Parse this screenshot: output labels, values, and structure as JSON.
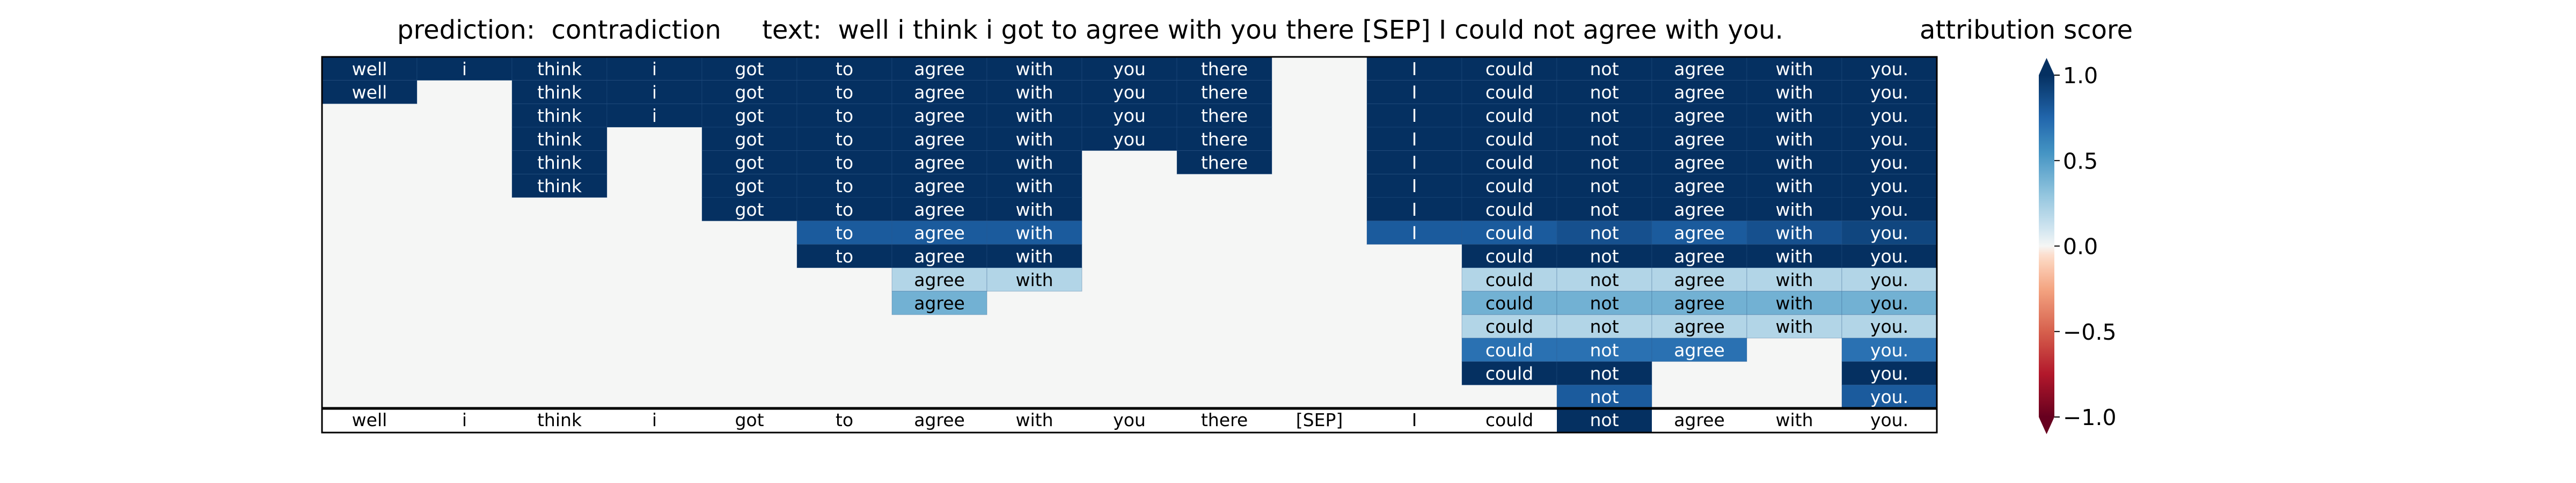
{
  "header": {
    "title": "prediction:  contradiction     text:  well i think i got to agree with you there [SEP] I could not agree with you.",
    "colorbar_title": "attribution score"
  },
  "chart_data": {
    "type": "heatmap",
    "tokens": [
      "well",
      "i",
      "think",
      "i",
      "got",
      "to",
      "agree",
      "with",
      "you",
      "there",
      "[SEP]",
      "I",
      "could",
      "not",
      "agree",
      "with",
      "you."
    ],
    "rows": [
      [
        1,
        1,
        1,
        1,
        1,
        1,
        1,
        1,
        1,
        1,
        0,
        1,
        1,
        1,
        1,
        1,
        1
      ],
      [
        1,
        0,
        1,
        1,
        1,
        1,
        1,
        1,
        1,
        1,
        0,
        1,
        1,
        1,
        1,
        1,
        1
      ],
      [
        0,
        0,
        1,
        1,
        1,
        1,
        1,
        1,
        1,
        1,
        0,
        1,
        1,
        1,
        1,
        1,
        1
      ],
      [
        0,
        0,
        1,
        0,
        1,
        1,
        1,
        1,
        1,
        1,
        0,
        1,
        1,
        1,
        1,
        1,
        1
      ],
      [
        0,
        0,
        1,
        0,
        1,
        1,
        1,
        1,
        0,
        1,
        0,
        1,
        1,
        1,
        1,
        1,
        1
      ],
      [
        0,
        0,
        1,
        0,
        1,
        1,
        1,
        1,
        0,
        0,
        0,
        1,
        1,
        1,
        1,
        1,
        1
      ],
      [
        0,
        0,
        0,
        0,
        1,
        1,
        1,
        1,
        0,
        0,
        0,
        1,
        1,
        1,
        1,
        1,
        1
      ],
      [
        0,
        0,
        0,
        0,
        0,
        0.8,
        0.8,
        0.8,
        0,
        0,
        0,
        0.8,
        0.8,
        0.85,
        0.8,
        0.85,
        0.9
      ],
      [
        0,
        0,
        0,
        0,
        0,
        1,
        1,
        1,
        0,
        0,
        0,
        0,
        1,
        1,
        1,
        1,
        1
      ],
      [
        0,
        0,
        0,
        0,
        0,
        0,
        0.2,
        0.2,
        0,
        0,
        0,
        0,
        0.2,
        0.2,
        0.2,
        0.2,
        0.2
      ],
      [
        0,
        0,
        0,
        0,
        0,
        0,
        0.4,
        0,
        0,
        0,
        0,
        0,
        0.4,
        0.4,
        0.4,
        0.4,
        0.4
      ],
      [
        0,
        0,
        0,
        0,
        0,
        0,
        0,
        0,
        0,
        0,
        0,
        0,
        0.2,
        0.2,
        0.2,
        0.2,
        0.2
      ],
      [
        0,
        0,
        0,
        0,
        0,
        0,
        0,
        0,
        0,
        0,
        0,
        0,
        0.7,
        0.7,
        0.7,
        0,
        0.7
      ],
      [
        0,
        0,
        0,
        0,
        0,
        0,
        0,
        0,
        0,
        0,
        0,
        0,
        1,
        1,
        0,
        0,
        1
      ],
      [
        0,
        0,
        0,
        0,
        0,
        0,
        0,
        0,
        0,
        0,
        0,
        0,
        0,
        0.8,
        0,
        0,
        0.8
      ]
    ],
    "bottom_row": [
      0,
      0,
      0,
      0,
      0,
      0,
      0,
      0,
      0,
      0,
      0,
      0,
      0,
      1,
      0,
      0,
      0
    ],
    "show_text_threshold": 0.05,
    "colorbar": {
      "ticks": [
        1.0,
        0.5,
        0.0,
        -0.5,
        -1.0
      ],
      "tick_labels": [
        "1.0",
        "0.5",
        "0.0",
        "−0.5",
        "−1.0"
      ],
      "range": [
        -1.0,
        1.0
      ],
      "colormap": "RdBu"
    },
    "colors": {
      "neutral": "#f5f6f5",
      "grid": "#ffffff",
      "frame": "#000000"
    },
    "xlabel": "",
    "ylabel": ""
  }
}
